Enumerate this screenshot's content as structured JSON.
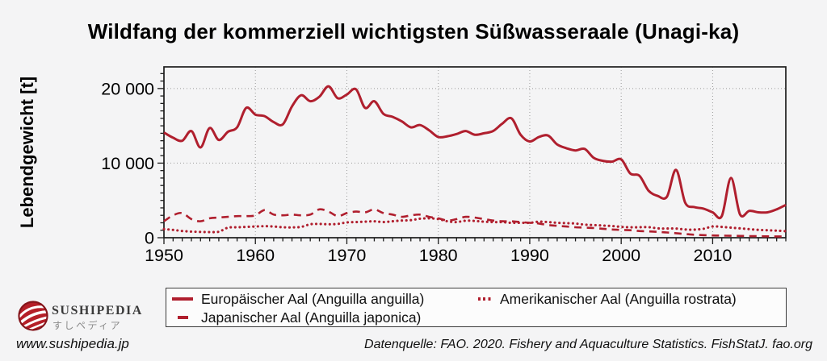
{
  "title": "Wildfang der kommerziell wichtigsten Süßwasseraale (Unagi-ka)",
  "y_axis_label": "Lebendgewicht [t]",
  "legend": {
    "items": [
      {
        "label": "Europäischer Aal (Anguilla anguilla)",
        "style": "solid"
      },
      {
        "label": "Japanischer Aal (Anguilla japonica)",
        "style": "dashed"
      },
      {
        "label": "Amerikanischer Aal (Anguilla rostrata)",
        "style": "dotted"
      }
    ]
  },
  "brand": {
    "name": "Sushipedia",
    "name_jp": "すしペディア",
    "url": "www.sushipedia.jp"
  },
  "source": "Datenquelle: FAO. 2020. Fishery and Aquaculture Statistics. FishStatJ. fao.org",
  "chart_data": {
    "type": "line",
    "title": "Wildfang der kommerziell wichtigsten Süßwasseraale (Unagi-ka)",
    "xlabel": "",
    "ylabel": "Lebendgewicht [t]",
    "x_min": 1950,
    "x_max": 2018,
    "x_step": 1,
    "ylim": [
      0,
      22900
    ],
    "x_ticks": [
      1950,
      1960,
      1970,
      1980,
      1990,
      2000,
      2010
    ],
    "y_ticks": [
      {
        "value": 0,
        "label": "0"
      },
      {
        "value": 10000,
        "label": "10 000"
      },
      {
        "value": 20000,
        "label": "20 000"
      }
    ],
    "grid": "dotted at major ticks",
    "legend_position": "bottom",
    "color": "#b01f2e",
    "series": [
      {
        "name": "Europäischer Aal (Anguilla anguilla)",
        "line_style": "solid",
        "values": [
          14100,
          13400,
          13000,
          14300,
          12100,
          14700,
          13100,
          14200,
          14800,
          17400,
          16500,
          16300,
          15500,
          15200,
          17600,
          19100,
          18300,
          18900,
          20300,
          18700,
          19200,
          19900,
          17400,
          18300,
          16600,
          16200,
          15600,
          14800,
          15100,
          14400,
          13500,
          13600,
          13900,
          14300,
          13800,
          14000,
          14300,
          15300,
          16000,
          13800,
          12900,
          13500,
          13700,
          12500,
          12000,
          11700,
          11900,
          10700,
          10300,
          10200,
          10500,
          8600,
          8300,
          6300,
          5600,
          5500,
          9100,
          4700,
          4100,
          3900,
          3400,
          2900,
          8000,
          3100,
          3600,
          3400,
          3400,
          3800,
          4400
        ]
      },
      {
        "name": "Japanischer Aal (Anguilla japonica)",
        "line_style": "dashed",
        "values": [
          2200,
          3000,
          3300,
          2500,
          2200,
          2600,
          2700,
          2800,
          2900,
          2900,
          3000,
          3700,
          3100,
          3000,
          3100,
          3000,
          3100,
          3800,
          3500,
          2900,
          3300,
          3500,
          3400,
          3800,
          3300,
          3100,
          2800,
          3000,
          3100,
          2800,
          2600,
          2300,
          2500,
          2800,
          2700,
          2500,
          2300,
          2200,
          2200,
          2100,
          2000,
          1900,
          1700,
          1600,
          1500,
          1400,
          1350,
          1300,
          1200,
          1100,
          1050,
          1000,
          900,
          850,
          780,
          700,
          600,
          500,
          400,
          350,
          300,
          280,
          260,
          240,
          220,
          200,
          180,
          170,
          160
        ]
      },
      {
        "name": "Amerikanischer Aal (Anguilla rostrata)",
        "line_style": "dotted",
        "values": [
          1160,
          1050,
          900,
          820,
          780,
          760,
          800,
          1350,
          1400,
          1450,
          1500,
          1550,
          1500,
          1400,
          1380,
          1450,
          1800,
          1850,
          1800,
          1850,
          2050,
          2100,
          2150,
          2200,
          2100,
          2200,
          2300,
          2350,
          2550,
          2600,
          2500,
          2200,
          2100,
          2280,
          2250,
          2150,
          2100,
          2080,
          2000,
          2000,
          2000,
          2150,
          2100,
          2000,
          1950,
          1900,
          1750,
          1700,
          1630,
          1570,
          1450,
          1400,
          1400,
          1420,
          1250,
          1230,
          1230,
          1100,
          1080,
          1200,
          1500,
          1450,
          1350,
          1250,
          1150,
          1050,
          1000,
          950,
          880
        ]
      }
    ]
  }
}
